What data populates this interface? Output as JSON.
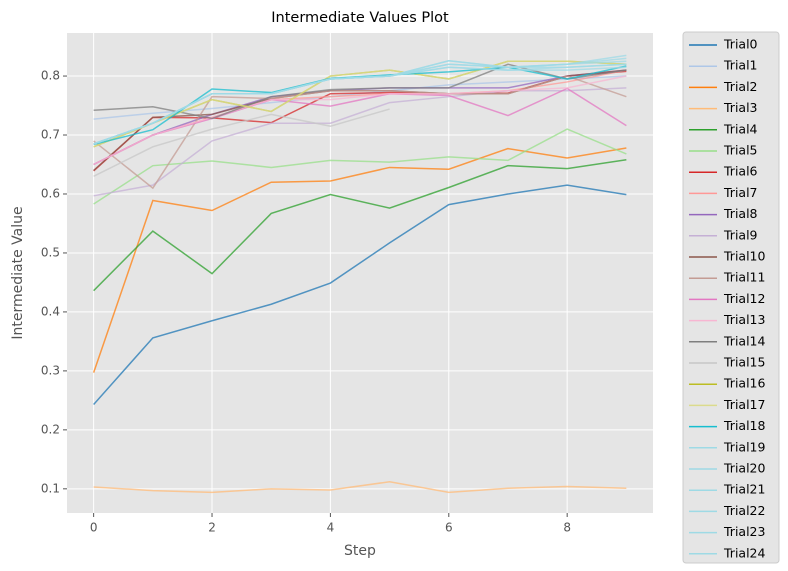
{
  "chart_data": {
    "type": "line",
    "title": "Intermediate Values Plot",
    "x_label": "Step",
    "y_label": "Intermediate Value",
    "x": [
      0,
      1,
      2,
      3,
      4,
      5,
      6,
      7,
      8,
      9
    ],
    "xlim": [
      -0.45,
      9.45
    ],
    "xticks": [
      0,
      2,
      4,
      6,
      8
    ],
    "ylim": [
      0.059,
      0.873
    ],
    "yticks": [
      0.1,
      0.2,
      0.3,
      0.4,
      0.5,
      0.6,
      0.7,
      0.8
    ],
    "grid": true,
    "legend": "outside right",
    "series": [
      {
        "name": "Trial0",
        "color": "#1f77b4",
        "values": [
          0.243,
          0.356,
          0.385,
          0.413,
          0.449,
          0.517,
          0.582,
          0.6,
          0.615,
          0.599
        ]
      },
      {
        "name": "Trial1",
        "color": "#aec7e8",
        "values": [
          0.727,
          0.737,
          0.745,
          0.755,
          0.765,
          0.775,
          0.785,
          0.79,
          0.795,
          0.8
        ]
      },
      {
        "name": "Trial2",
        "color": "#ff7f0e",
        "values": [
          0.297,
          0.589,
          0.572,
          0.62,
          0.622,
          0.645,
          0.642,
          0.677,
          0.661,
          0.678
        ]
      },
      {
        "name": "Trial3",
        "color": "#ffbb78",
        "values": [
          0.103,
          0.097,
          0.094,
          0.1,
          0.098,
          0.112,
          0.094,
          0.101,
          0.104,
          0.101
        ]
      },
      {
        "name": "Trial4",
        "color": "#2ca02c",
        "values": [
          0.436,
          0.537,
          0.465,
          0.567,
          0.599,
          0.576,
          0.611,
          0.648,
          0.643,
          0.658
        ]
      },
      {
        "name": "Trial5",
        "color": "#98df8a",
        "values": [
          0.583,
          0.648,
          0.656,
          0.645,
          0.657,
          0.654,
          0.663,
          0.657,
          0.71,
          0.668
        ]
      },
      {
        "name": "Trial6",
        "color": "#d62728",
        "values": [
          0.639,
          0.73,
          0.729,
          0.721,
          0.77,
          0.772,
          0.77,
          0.771,
          0.8,
          0.808
        ]
      },
      {
        "name": "Trial7",
        "color": "#ff9896",
        "values": [
          0.65,
          0.7,
          0.73,
          0.76,
          0.765,
          0.77,
          0.77,
          0.775,
          0.79,
          0.81
        ]
      },
      {
        "name": "Trial8",
        "color": "#9467bd",
        "values": [
          0.65,
          0.7,
          0.735,
          0.765,
          0.775,
          0.78,
          0.78,
          0.78,
          0.8,
          0.81
        ]
      },
      {
        "name": "Trial9",
        "color": "#c5b0d5",
        "values": [
          0.597,
          0.615,
          0.69,
          0.72,
          0.72,
          0.755,
          0.765,
          0.775,
          0.775,
          0.78
        ]
      },
      {
        "name": "Trial10",
        "color": "#8c564b",
        "values": [
          0.64,
          0.73,
          0.735,
          0.762,
          0.775,
          0.775,
          0.77,
          0.77,
          0.8,
          0.81
        ]
      },
      {
        "name": "Trial11",
        "color": "#c49c94",
        "values": [
          0.69,
          0.61,
          0.765,
          0.762,
          0.775,
          0.775,
          0.77,
          0.77,
          0.8,
          0.765
        ]
      },
      {
        "name": "Trial12",
        "color": "#e377c2",
        "values": [
          0.65,
          0.7,
          0.728,
          0.76,
          0.749,
          0.77,
          0.767,
          0.733,
          0.779,
          0.716
        ]
      },
      {
        "name": "Trial13",
        "color": "#f7b6d2",
        "values": [
          0.65,
          0.7,
          0.73,
          0.76,
          0.76,
          0.77,
          0.77,
          0.775,
          0.78,
          0.8
        ]
      },
      {
        "name": "Trial14",
        "color": "#7f7f7f",
        "values": [
          0.742,
          0.748,
          0.728,
          0.765,
          0.777,
          0.78,
          0.78,
          0.82,
          0.795,
          0.81
        ]
      },
      {
        "name": "Trial15",
        "color": "#c7c7c7",
        "values": [
          0.63,
          0.68,
          0.71,
          0.735,
          0.715,
          0.744,
          null,
          null,
          null,
          null
        ]
      },
      {
        "name": "Trial16",
        "color": "#bcbd22",
        "values": [
          0.68,
          0.72,
          0.76,
          0.74,
          0.8,
          0.81,
          0.795,
          0.825,
          0.825,
          0.82
        ]
      },
      {
        "name": "Trial17",
        "color": "#dbdb8d",
        "values": [
          0.68,
          0.72,
          0.76,
          0.74,
          0.8,
          0.81,
          0.795,
          0.825,
          0.825,
          0.82
        ]
      },
      {
        "name": "Trial18",
        "color": "#17becf",
        "values": [
          0.684,
          0.709,
          0.778,
          0.772,
          0.796,
          0.802,
          0.807,
          0.815,
          0.795,
          0.817
        ]
      },
      {
        "name": "Trial19",
        "color": "#9edae5",
        "values": [
          0.685,
          0.72,
          0.77,
          0.77,
          0.795,
          0.8,
          0.826,
          0.815,
          0.82,
          0.835
        ]
      },
      {
        "name": "Trial20",
        "color": "#9edae5",
        "values": [
          0.685,
          0.72,
          0.77,
          0.77,
          0.795,
          0.8,
          0.826,
          0.815,
          0.82,
          0.83
        ]
      },
      {
        "name": "Trial21",
        "color": "#9edae5",
        "values": [
          0.685,
          0.72,
          0.77,
          0.77,
          0.795,
          0.8,
          0.82,
          0.815,
          0.82,
          0.825
        ]
      },
      {
        "name": "Trial22",
        "color": "#9edae5",
        "values": [
          0.685,
          0.72,
          0.77,
          0.77,
          0.795,
          0.8,
          0.82,
          0.815,
          0.815,
          0.82
        ]
      },
      {
        "name": "Trial23",
        "color": "#9edae5",
        "values": [
          0.685,
          0.72,
          0.77,
          0.77,
          0.795,
          0.8,
          0.815,
          0.81,
          0.815,
          0.82
        ]
      },
      {
        "name": "Trial24",
        "color": "#9edae5",
        "values": [
          0.685,
          0.72,
          0.77,
          0.77,
          0.795,
          0.8,
          0.815,
          0.81,
          0.81,
          0.815
        ]
      }
    ]
  }
}
